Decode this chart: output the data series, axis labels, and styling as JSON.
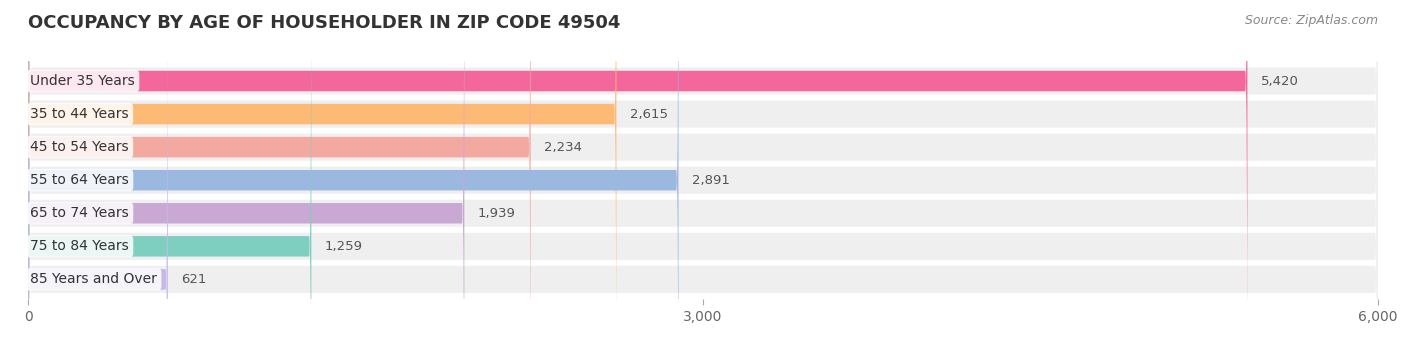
{
  "title": "OCCUPANCY BY AGE OF HOUSEHOLDER IN ZIP CODE 49504",
  "source": "Source: ZipAtlas.com",
  "categories": [
    "Under 35 Years",
    "35 to 44 Years",
    "45 to 54 Years",
    "55 to 64 Years",
    "65 to 74 Years",
    "75 to 84 Years",
    "85 Years and Over"
  ],
  "values": [
    5420,
    2615,
    2234,
    2891,
    1939,
    1259,
    621
  ],
  "bar_colors": [
    "#F4679D",
    "#FDBA74",
    "#F4A9A0",
    "#9BB8E0",
    "#C9A8D4",
    "#7ECFC0",
    "#C8B8E8"
  ],
  "bar_bg_color": "#EFEFEF",
  "xlim": [
    0,
    6000
  ],
  "xticks": [
    0,
    3000,
    6000
  ],
  "title_fontsize": 13,
  "label_fontsize": 10,
  "value_fontsize": 9.5,
  "source_fontsize": 9,
  "background_color": "#FFFFFF",
  "title_color": "#333333",
  "label_color": "#333333",
  "value_color": "#555555",
  "source_color": "#888888"
}
